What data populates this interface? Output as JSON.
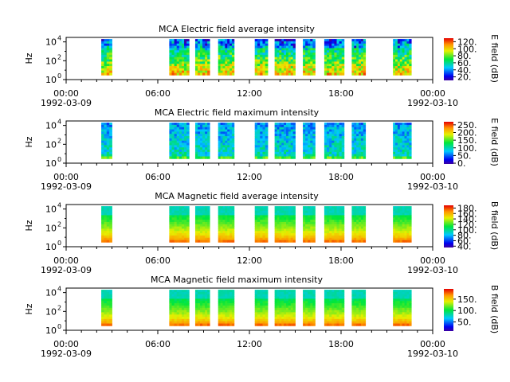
{
  "chart_data": [
    {
      "type": "heatmap",
      "title": "MCA  Electric field average intensity",
      "ylabel": "Hz",
      "colorbar_label": "E field (dB)",
      "colorbar_ticks": [
        "20.",
        "40.",
        "60.",
        "80.",
        "100.",
        "120."
      ],
      "colorbar_range": [
        10,
        130
      ],
      "yticks": [
        "10^0",
        "10^2",
        "10^4"
      ],
      "ylim_hz": [
        1,
        30000
      ],
      "yscale": "log",
      "x_tick_labels": [
        "00:00",
        "06:00",
        "12:00",
        "18:00",
        "00:00"
      ],
      "x_date_labels": [
        "1992-03-09",
        "",
        "",
        "",
        "1992-03-10"
      ],
      "xlim_hours": [
        0,
        24
      ],
      "profile": "avgE"
    },
    {
      "type": "heatmap",
      "title": "MCA  Electric field maximum intensity",
      "ylabel": "Hz",
      "colorbar_label": "E field (dB)",
      "colorbar_ticks": [
        "0.",
        "50.",
        "100.",
        "150.",
        "200.",
        "250."
      ],
      "colorbar_range": [
        -5,
        270
      ],
      "yticks": [
        "10^0",
        "10^2",
        "10^4"
      ],
      "ylim_hz": [
        1,
        30000
      ],
      "yscale": "log",
      "x_tick_labels": [
        "00:00",
        "06:00",
        "12:00",
        "18:00",
        "00:00"
      ],
      "x_date_labels": [
        "1992-03-09",
        "",
        "",
        "",
        "1992-03-10"
      ],
      "xlim_hours": [
        0,
        24
      ],
      "profile": "maxE"
    },
    {
      "type": "heatmap",
      "title": "MCA  Magnetic field average intensity",
      "ylabel": "Hz",
      "colorbar_label": "B field (dB)",
      "colorbar_ticks": [
        "40.",
        "60.",
        "80.",
        "100.",
        "120.",
        "140.",
        "160.",
        "180."
      ],
      "colorbar_range": [
        35,
        190
      ],
      "yticks": [
        "10^0",
        "10^2",
        "10^4"
      ],
      "ylim_hz": [
        1,
        30000
      ],
      "yscale": "log",
      "x_tick_labels": [
        "00:00",
        "06:00",
        "12:00",
        "18:00",
        "00:00"
      ],
      "x_date_labels": [
        "1992-03-09",
        "",
        "",
        "",
        "1992-03-10"
      ],
      "xlim_hours": [
        0,
        24
      ],
      "profile": "avgB"
    },
    {
      "type": "heatmap",
      "title": "MCA  Magnetic field maximum intensity",
      "ylabel": "Hz",
      "colorbar_label": "B field (dB)",
      "colorbar_ticks": [
        "50.",
        "100.",
        "150."
      ],
      "colorbar_range": [
        10,
        195
      ],
      "yticks": [
        "10^0",
        "10^2",
        "10^4"
      ],
      "ylim_hz": [
        1,
        30000
      ],
      "yscale": "log",
      "x_tick_labels": [
        "00:00",
        "06:00",
        "12:00",
        "18:00",
        "00:00"
      ],
      "x_date_labels": [
        "1992-03-09",
        "",
        "",
        "",
        "1992-03-10"
      ],
      "xlim_hours": [
        0,
        24
      ],
      "profile": "maxB"
    }
  ],
  "data_segments_hours": [
    [
      2.3,
      3.0
    ],
    [
      6.75,
      8.05
    ],
    [
      8.45,
      9.4
    ],
    [
      9.95,
      11.0
    ],
    [
      12.35,
      13.2
    ],
    [
      13.65,
      15.0
    ],
    [
      15.5,
      16.3
    ],
    [
      16.9,
      18.2
    ],
    [
      18.7,
      19.6
    ],
    [
      21.4,
      22.6
    ]
  ],
  "segment_frequency_range_hz": [
    3,
    20000
  ]
}
